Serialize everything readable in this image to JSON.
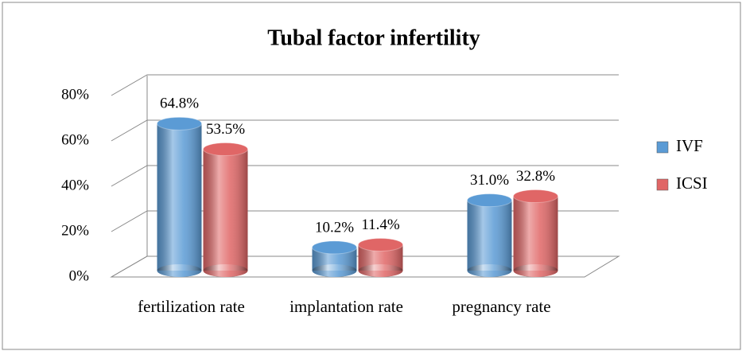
{
  "chart_data": {
    "type": "bar",
    "title": "Tubal factor infertility",
    "categories": [
      "fertilization rate",
      "implantation rate",
      "pregnancy rate"
    ],
    "series": [
      {
        "name": "IVF",
        "color": "#5b9bd5",
        "values": [
          64.8,
          10.2,
          31.0
        ],
        "value_labels": [
          "64.8%",
          "10.2%",
          "31.0%"
        ]
      },
      {
        "name": "ICSI",
        "color": "#e06666",
        "values": [
          53.5,
          11.4,
          32.8
        ],
        "value_labels": [
          "53.5%",
          "11.4%",
          "32.8%"
        ]
      }
    ],
    "ylim": [
      0,
      80
    ],
    "yticks": [
      {
        "value": 0,
        "label": "0%"
      },
      {
        "value": 20,
        "label": "20%"
      },
      {
        "value": 40,
        "label": "40%"
      },
      {
        "value": 60,
        "label": "60%"
      },
      {
        "value": 80,
        "label": "80%"
      }
    ],
    "grid": true,
    "legend": "right"
  }
}
